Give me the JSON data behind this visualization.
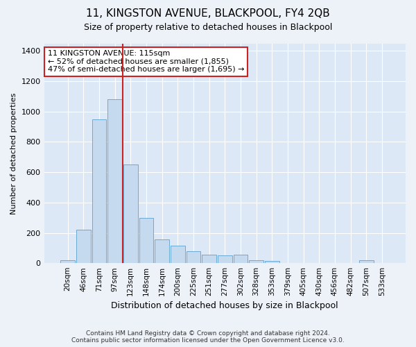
{
  "title": "11, KINGSTON AVENUE, BLACKPOOL, FY4 2QB",
  "subtitle": "Size of property relative to detached houses in Blackpool",
  "xlabel": "Distribution of detached houses by size in Blackpool",
  "ylabel": "Number of detached properties",
  "bar_labels": [
    "20sqm",
    "46sqm",
    "71sqm",
    "97sqm",
    "123sqm",
    "148sqm",
    "174sqm",
    "200sqm",
    "225sqm",
    "251sqm",
    "277sqm",
    "302sqm",
    "328sqm",
    "353sqm",
    "379sqm",
    "405sqm",
    "430sqm",
    "456sqm",
    "482sqm",
    "507sqm",
    "533sqm"
  ],
  "bar_values": [
    20,
    220,
    950,
    1080,
    650,
    300,
    155,
    115,
    80,
    55,
    50,
    55,
    20,
    15,
    0,
    0,
    0,
    0,
    0,
    20,
    0
  ],
  "bar_color": "#c5d9ef",
  "bar_edge_color": "#6aaad4",
  "ylim": [
    0,
    1450
  ],
  "yticks": [
    0,
    200,
    400,
    600,
    800,
    1000,
    1200,
    1400
  ],
  "property_bin_index": 4,
  "vline_color": "#cc2222",
  "annotation_line1": "11 KINGSTON AVENUE: 115sqm",
  "annotation_line2": "← 52% of detached houses are smaller (1,855)",
  "annotation_line3": "47% of semi-detached houses are larger (1,695) →",
  "annotation_box_color": "#cc2222",
  "footer_line1": "Contains HM Land Registry data © Crown copyright and database right 2024.",
  "footer_line2": "Contains public sector information licensed under the Open Government Licence v3.0.",
  "bg_color": "#edf2f9",
  "plot_bg_color": "#dce8f5",
  "grid_color": "#ffffff",
  "title_fontsize": 11,
  "subtitle_fontsize": 9,
  "ylabel_fontsize": 8,
  "xlabel_fontsize": 9,
  "tick_fontsize": 8,
  "xtick_fontsize": 7.5
}
